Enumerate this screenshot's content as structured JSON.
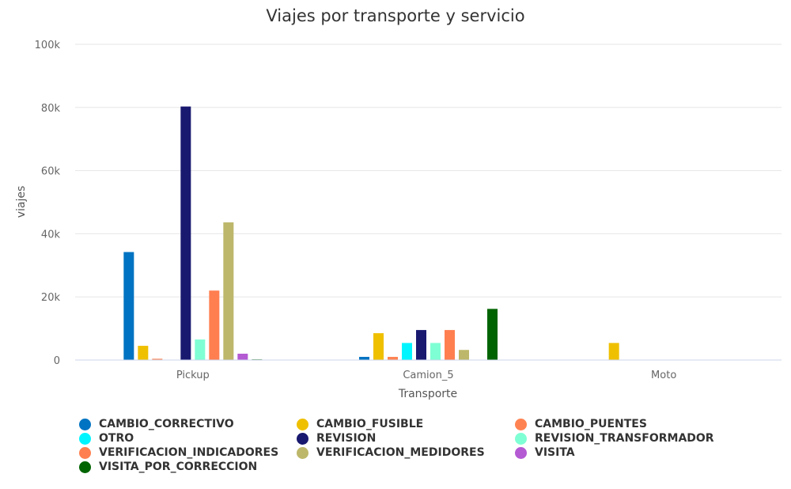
{
  "chart_data": {
    "type": "bar",
    "title": "Viajes por transporte y servicio",
    "xlabel": "Transporte",
    "ylabel": "viajes",
    "categories": [
      "Pickup",
      "Camion_5",
      "Moto"
    ],
    "ylim": [
      0,
      100000
    ],
    "yticks": [
      {
        "value": 0,
        "label": "0"
      },
      {
        "value": 20000,
        "label": "20k"
      },
      {
        "value": 40000,
        "label": "40k"
      },
      {
        "value": 60000,
        "label": "60k"
      },
      {
        "value": 80000,
        "label": "80k"
      },
      {
        "value": 100000,
        "label": "100k"
      }
    ],
    "grid": true,
    "legend_position": "bottom",
    "series": [
      {
        "name": "CAMBIO_CORRECTIVO",
        "color": "#0073c2",
        "values": [
          34200,
          1000,
          0
        ]
      },
      {
        "name": "CAMBIO_FUSIBLE",
        "color": "#efc000",
        "values": [
          4500,
          8500,
          5400
        ]
      },
      {
        "name": "CAMBIO_PUENTES",
        "color": "#ff8352",
        "values": [
          400,
          1000,
          0
        ]
      },
      {
        "name": "OTRO",
        "color": "#00f5ff",
        "values": [
          0,
          5400,
          0
        ]
      },
      {
        "name": "REVISION",
        "color": "#191970",
        "values": [
          80300,
          9500,
          0
        ]
      },
      {
        "name": "REVISION_TRANSFORMADOR",
        "color": "#7fffd4",
        "values": [
          6500,
          5400,
          0
        ]
      },
      {
        "name": "VERIFICACION_INDICADORES",
        "color": "#ff7f50",
        "values": [
          22000,
          9500,
          0
        ]
      },
      {
        "name": "VERIFICACION_MEDIDORES",
        "color": "#bdb76b",
        "values": [
          43600,
          3200,
          0
        ]
      },
      {
        "name": "VISITA",
        "color": "#b45ad3",
        "values": [
          2000,
          0,
          0
        ]
      },
      {
        "name": "VISITA_POR_CORRECCION",
        "color": "#006400",
        "values": [
          200,
          16200,
          0
        ]
      }
    ]
  }
}
